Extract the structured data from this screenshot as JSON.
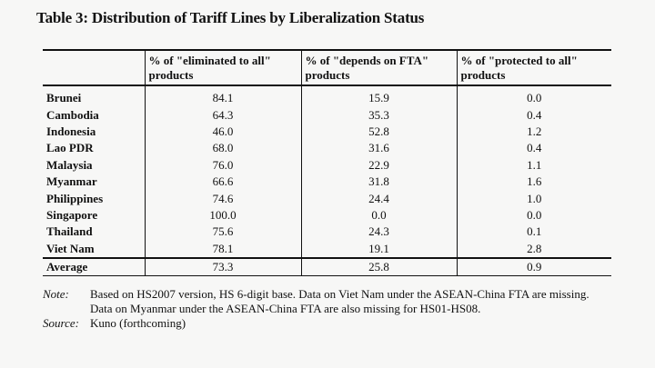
{
  "title": "Table 3: Distribution of Tariff Lines by Liberalization Status",
  "table": {
    "headers": [
      "",
      "% of \"eliminated to all\" products",
      "% of \"depends on FTA\" products",
      "% of \"protected to all\" products"
    ],
    "rows": [
      {
        "country": "Brunei",
        "eliminated": "84.1",
        "depends": "15.9",
        "protected": "0.0"
      },
      {
        "country": "Cambodia",
        "eliminated": "64.3",
        "depends": "35.3",
        "protected": "0.4"
      },
      {
        "country": "Indonesia",
        "eliminated": "46.0",
        "depends": "52.8",
        "protected": "1.2"
      },
      {
        "country": "Lao PDR",
        "eliminated": "68.0",
        "depends": "31.6",
        "protected": "0.4"
      },
      {
        "country": "Malaysia",
        "eliminated": "76.0",
        "depends": "22.9",
        "protected": "1.1"
      },
      {
        "country": "Myanmar",
        "eliminated": "66.6",
        "depends": "31.8",
        "protected": "1.6"
      },
      {
        "country": "Philippines",
        "eliminated": "74.6",
        "depends": "24.4",
        "protected": "1.0"
      },
      {
        "country": "Singapore",
        "eliminated": "100.0",
        "depends": "0.0",
        "protected": "0.0"
      },
      {
        "country": "Thailand",
        "eliminated": "75.6",
        "depends": "24.3",
        "protected": "0.1"
      },
      {
        "country": "Viet Nam",
        "eliminated": "78.1",
        "depends": "19.1",
        "protected": "2.8"
      }
    ],
    "average": {
      "label": "Average",
      "eliminated": "73.3",
      "depends": "25.8",
      "protected": "0.9"
    }
  },
  "notes": {
    "note_label": "Note:",
    "note_text": "Based on HS2007 version, HS 6-digit base. Data on Viet Nam under the ASEAN-China FTA are missing. Data on Myanmar under the ASEAN-China FTA are also missing for HS01-HS08.",
    "source_label": "Source:",
    "source_text": "Kuno (forthcoming)"
  }
}
